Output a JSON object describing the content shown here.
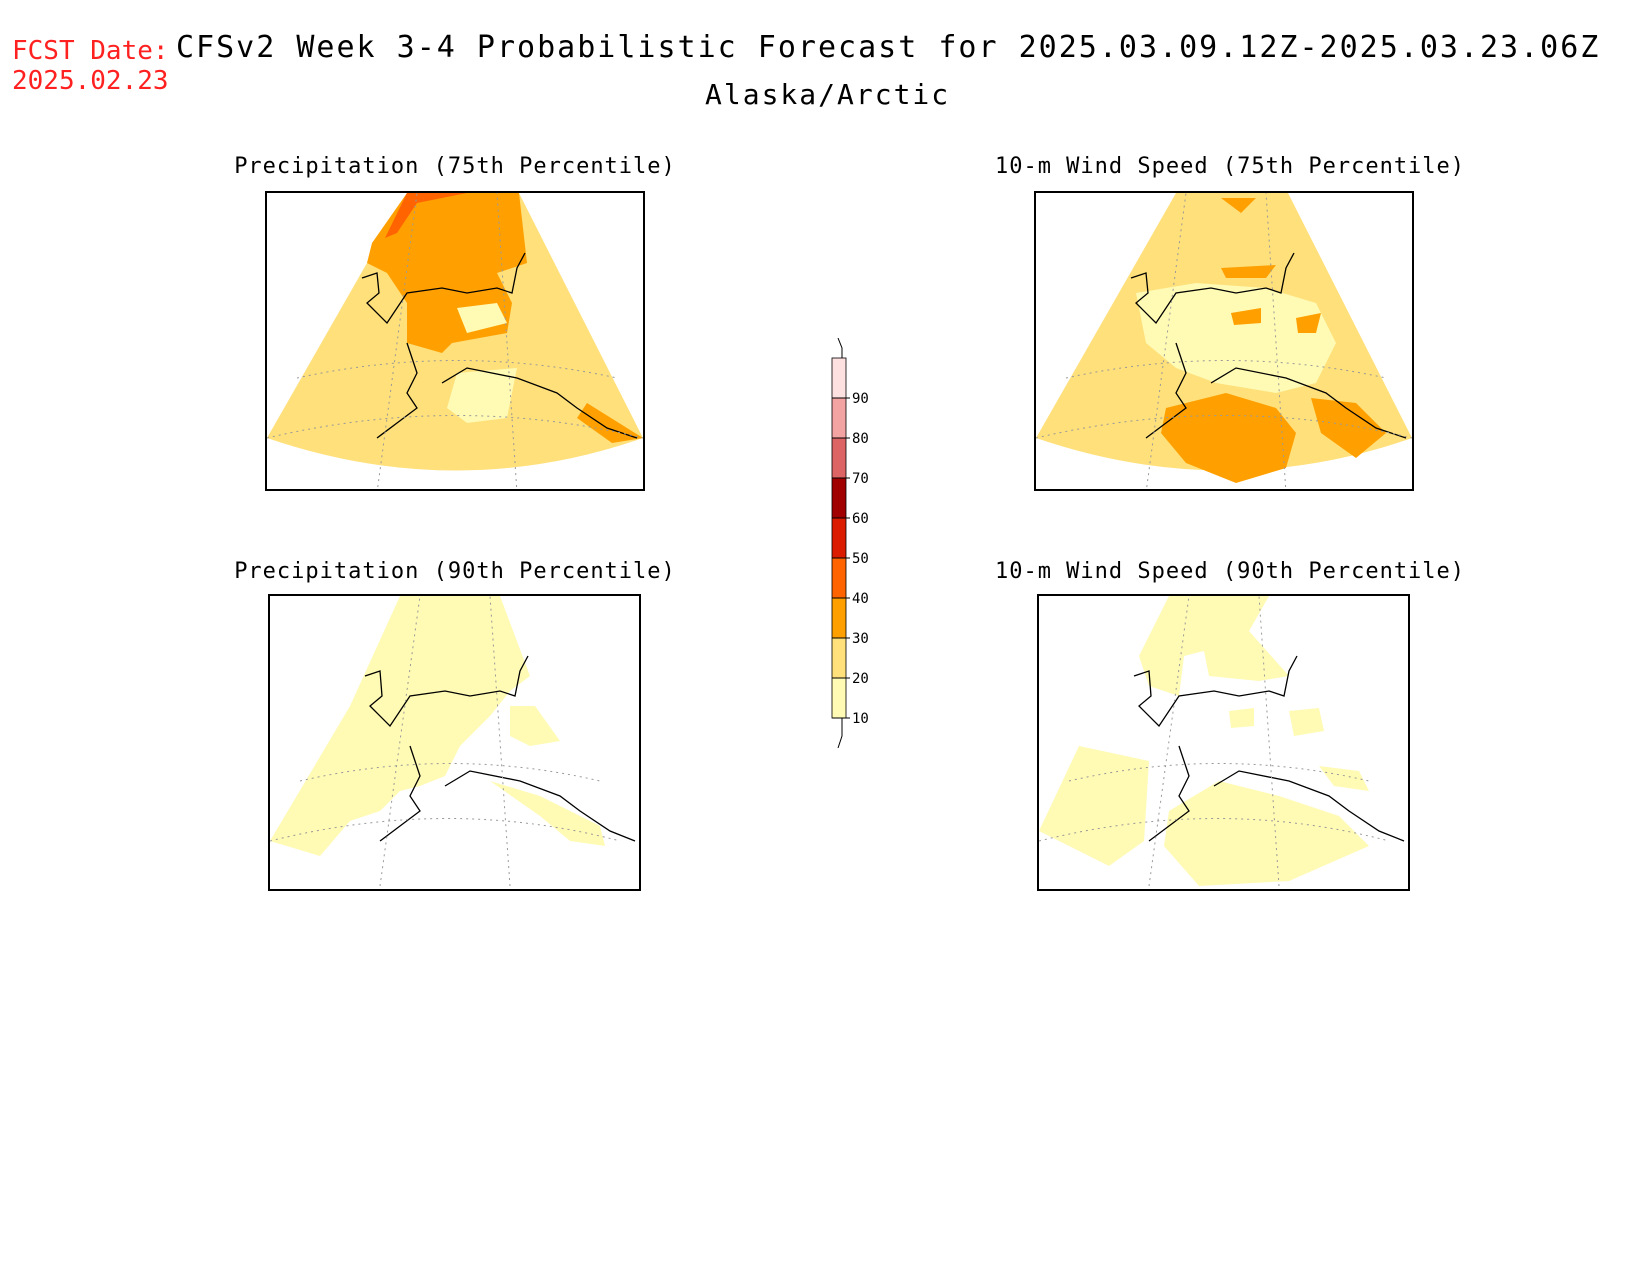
{
  "header": {
    "fcst_label": "FCST Date:",
    "fcst_date": "2025.02.23",
    "title": "CFSv2 Week 3-4 Probabilistic Forecast for 2025.03.09.12Z-2025.03.23.06Z",
    "region": "Alaska/Arctic"
  },
  "panels": [
    {
      "title": "Precipitation (75th Percentile)",
      "dominant_bin": "20-30",
      "secondary_bin": "30-40"
    },
    {
      "title": "10-m Wind Speed (75th Percentile)",
      "dominant_bin": "20-30",
      "secondary_bin": "30-40"
    },
    {
      "title": "Precipitation (90th Percentile)",
      "dominant_bin": "10-20",
      "secondary_bin": "<10"
    },
    {
      "title": "10-m Wind Speed (90th Percentile)",
      "dominant_bin": "10-20",
      "secondary_bin": "<10"
    }
  ],
  "colorbar": {
    "levels": [
      "90",
      "80",
      "70",
      "60",
      "50",
      "40",
      "30",
      "20",
      "10"
    ],
    "colors": [
      "#fde0e0",
      "#f4a3a3",
      "#dc6464",
      "#a00000",
      "#dc1c00",
      "#ff6400",
      "#ffa000",
      "#ffe07a",
      "#fffab4"
    ]
  },
  "palette": {
    "c10_20": "#fffab4",
    "c20_30": "#ffe07a",
    "c30_40": "#ffa000",
    "c40_50": "#ff6400",
    "fcst_red": "#ff2020",
    "land_outline": "#000000"
  }
}
